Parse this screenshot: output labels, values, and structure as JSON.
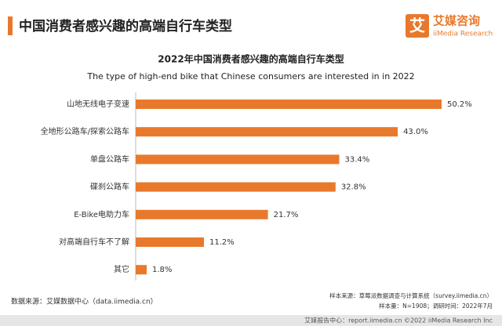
{
  "header": {
    "title": "中国消费者感兴趣的高端自行车类型",
    "logo_icon": "艾",
    "logo_name": "艾媒咨询",
    "logo_sub": "iiMedia Research"
  },
  "chart_data": {
    "type": "bar",
    "orientation": "horizontal",
    "title": "2022年中国消费者感兴趣的高端自行车类型",
    "subtitle": "The type of high-end bike that Chinese consumers are interested in in 2022",
    "categories": [
      "山地无线电子变速",
      "全地形公路车/探索公路车",
      "单盘公路车",
      "碟刹公路车",
      "E-Bike电助力车",
      "对高端自行车不了解",
      "其它"
    ],
    "values": [
      50.2,
      43.0,
      33.4,
      32.8,
      21.7,
      11.2,
      1.8
    ],
    "value_labels": [
      "50.2%",
      "43.0%",
      "33.4%",
      "32.8%",
      "21.7%",
      "11.2%",
      "1.8%"
    ],
    "color": "#e8792c"
  },
  "footer": {
    "source": "数据来源：艾媒数据中心（data.iimedia.cn）",
    "sample_source": "样本来源：草莓派数据调查与计算系统（survey.iimedia.cn）",
    "sample_size": "样本量：N=1908；调研时间：2022年7月",
    "report_center": "艾媒报告中心：report.iimedia.cn  ©2022  iiMedia Research  Inc"
  }
}
